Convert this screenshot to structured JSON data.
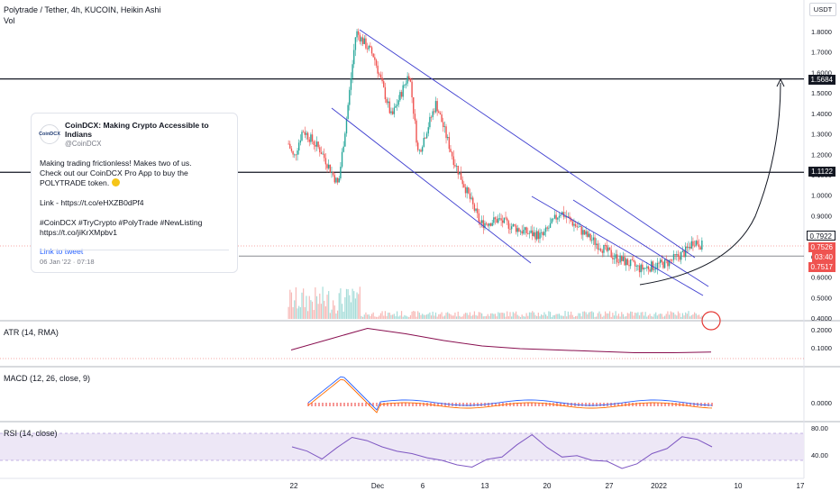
{
  "header": {
    "title": "Polytrade / Tether, 4h, KUCOIN, Heikin Ashi",
    "vol_label": "Vol",
    "quote_unit": "USDT"
  },
  "tweet": {
    "avatar_text": "CoinDCX",
    "name": "CoinDCX: Making Crypto Accessible to Indians",
    "handle": "@CoinDCX",
    "lines": [
      "Making trading frictionless! Makes two of us.",
      "Check out our CoinDCX Pro App to buy the",
      "POLYTRADE token.",
      "",
      "Link -  https://t.co/eHXZB0dPf4",
      "",
      "#CoinDCX #TryCrypto #PolyTrade #NewListing",
      "https://t.co/jiKrXMpbv1"
    ],
    "link_label": "Link to tweet",
    "date": "06 Jan '22 · 07:18"
  },
  "price_axis": {
    "ticks": [
      "1.8000",
      "1.7000",
      "1.6000",
      "1.5000",
      "1.4000",
      "1.3000",
      "1.2000",
      "1.1000",
      "1.0000",
      "0.9000",
      "0.8000",
      "0.7000",
      "0.6000",
      "0.5000",
      "0.4000"
    ],
    "labels": {
      "resistance_high": "1.5684",
      "resistance_low": "1.1122",
      "last_price": "0.7922",
      "close_price": "0.7526",
      "countdown": "03:40",
      "low_price": "0.7517"
    }
  },
  "indicators": {
    "atr": {
      "label": "ATR (14, RMA)",
      "ticks": [
        "0.2000",
        "0.1000"
      ]
    },
    "macd": {
      "label": "MACD (12, 26, close, 9)",
      "ticks": [
        "0.0000"
      ]
    },
    "rsi": {
      "label": "RSI (14, close)",
      "ticks": [
        "80.00",
        "40.00"
      ]
    }
  },
  "time_axis": {
    "labels": [
      "22",
      "Dec",
      "6",
      "13",
      "20",
      "27",
      "2022",
      "10",
      "17"
    ]
  },
  "colors": {
    "bull": "#26a69a",
    "bear": "#ef5350",
    "channel": "#3f3fd0",
    "atr": "#880e4f",
    "macd": "#2962ff",
    "signal": "#ff6d00",
    "rsi": "#7e57c2"
  },
  "chart_data": {
    "type": "candlestick",
    "price_close_path": [
      {
        "x": "Nov 21",
        "y": 1.3
      },
      {
        "x": "Nov 22",
        "y": 1.18
      },
      {
        "x": "Nov 23",
        "y": 1.32
      },
      {
        "x": "Nov 25",
        "y": 1.22
      },
      {
        "x": "Nov 27",
        "y": 1.05
      },
      {
        "x": "Nov 28",
        "y": 1.4
      },
      {
        "x": "Nov 29",
        "y": 1.8
      },
      {
        "x": "Dec 1",
        "y": 1.68
      },
      {
        "x": "Dec 3",
        "y": 1.38
      },
      {
        "x": "Dec 5",
        "y": 1.6
      },
      {
        "x": "Dec 6",
        "y": 1.2
      },
      {
        "x": "Dec 8",
        "y": 1.45
      },
      {
        "x": "Dec 10",
        "y": 1.17
      },
      {
        "x": "Dec 13",
        "y": 0.86
      },
      {
        "x": "Dec 15",
        "y": 0.88
      },
      {
        "x": "Dec 18",
        "y": 0.82
      },
      {
        "x": "Dec 20",
        "y": 0.8
      },
      {
        "x": "Dec 22",
        "y": 0.92
      },
      {
        "x": "Dec 25",
        "y": 0.8
      },
      {
        "x": "Dec 28",
        "y": 0.7
      },
      {
        "x": "Dec 31",
        "y": 0.64
      },
      {
        "x": "Jan 3",
        "y": 0.67
      },
      {
        "x": "Jan 5",
        "y": 0.72
      },
      {
        "x": "Jan 6",
        "y": 0.78
      },
      {
        "x": "Jan 7",
        "y": 0.7526
      }
    ],
    "horizontal_levels": [
      1.5684,
      1.1122,
      0.7517
    ],
    "ylim": [
      0.4,
      1.9
    ],
    "atr_series": [
      0.05,
      0.13,
      0.21,
      0.17,
      0.12,
      0.08,
      0.06,
      0.05,
      0.04,
      0.03,
      0.03,
      0.035
    ],
    "rsi_series": [
      60,
      42,
      74,
      60,
      50,
      40,
      30,
      45,
      78,
      45,
      40,
      28,
      50,
      75,
      60
    ]
  }
}
